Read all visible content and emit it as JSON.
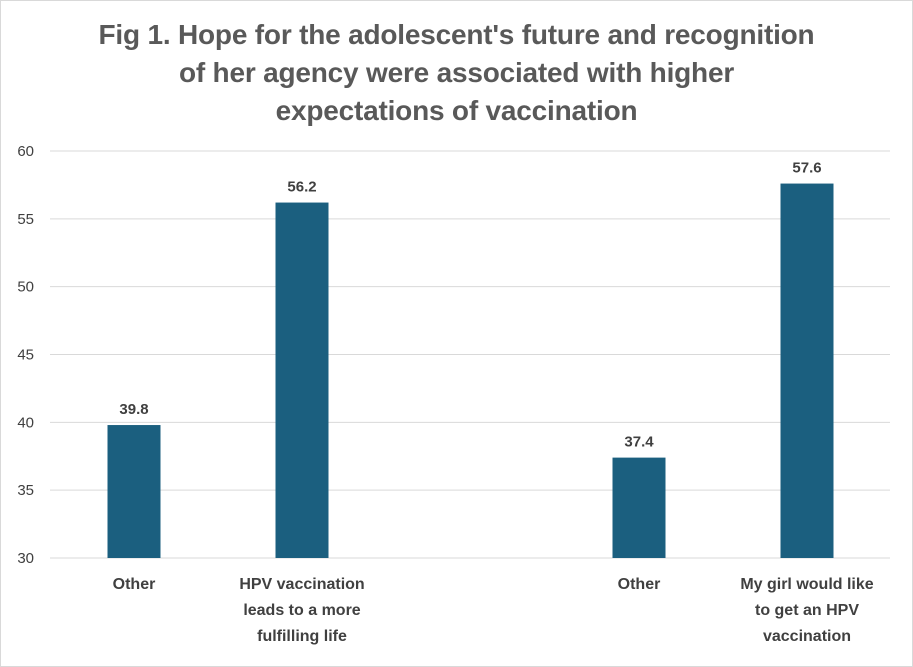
{
  "chart_data": {
    "type": "bar",
    "title": "Fig 1. Hope for the adolescent's future and recognition of her agency were associated with higher expectations of vaccination",
    "title_lines": [
      "Fig 1. Hope for the adolescent's future and recognition",
      "of her agency were associated with higher",
      "expectations of vaccination"
    ],
    "categories": [
      [
        "Other"
      ],
      [
        "HPV vaccination",
        "leads to a more",
        "fulfilling life"
      ],
      [
        "Other"
      ],
      [
        "My girl would like",
        "to get an HPV",
        "vaccination"
      ]
    ],
    "values": [
      39.8,
      56.2,
      37.4,
      57.6
    ],
    "value_labels": [
      "39.8",
      "56.2",
      "37.4",
      "57.6"
    ],
    "ylim": [
      30,
      60
    ],
    "yticks": [
      30,
      35,
      40,
      45,
      50,
      55,
      60
    ],
    "xlabel": "",
    "ylabel": "",
    "grid": true,
    "bar_color": "#1b5f7f",
    "grid_color": "#d9d9d9"
  }
}
